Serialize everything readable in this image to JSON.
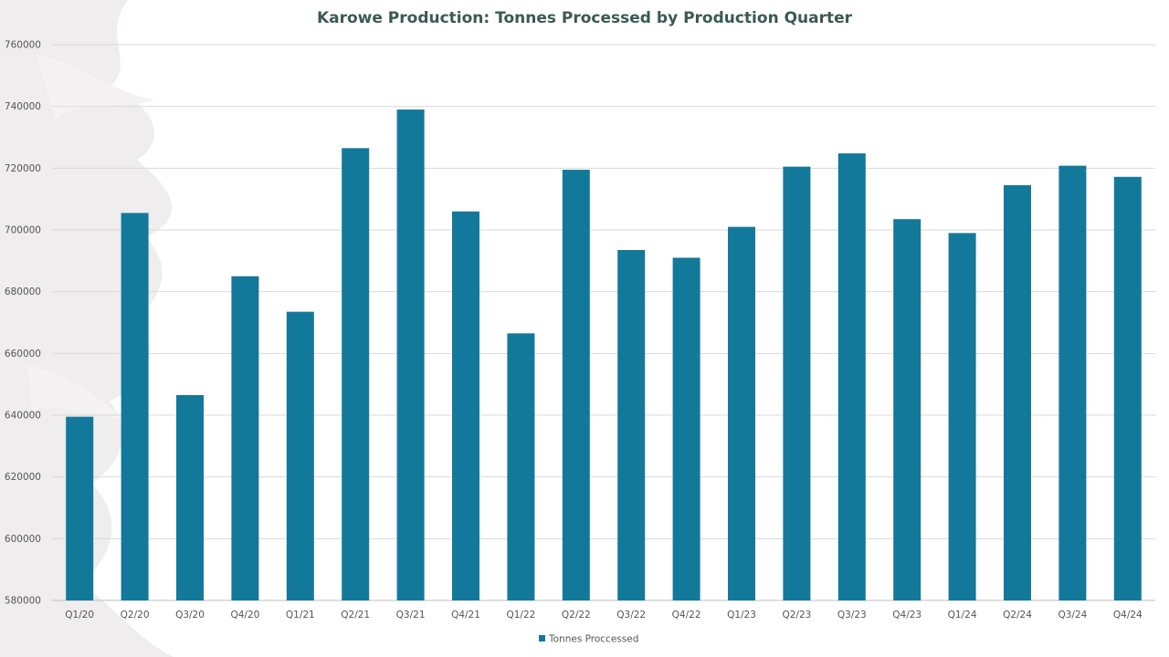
{
  "chart_data": {
    "type": "bar",
    "title": "Karowe Production: Tonnes Processed by Production Quarter",
    "xlabel": "",
    "ylabel": "",
    "categories": [
      "Q1/20",
      "Q2/20",
      "Q3/20",
      "Q4/20",
      "Q1/21",
      "Q2/21",
      "Q3/21",
      "Q4/21",
      "Q1/22",
      "Q2/22",
      "Q3/22",
      "Q4/22",
      "Q1/23",
      "Q2/23",
      "Q3/23",
      "Q4/23",
      "Q1/24",
      "Q2/24",
      "Q3/24",
      "Q4/24"
    ],
    "series": [
      {
        "name": "Tonnes Proccessed",
        "color": "#13799b",
        "values": [
          639500,
          705500,
          646500,
          685000,
          673500,
          726500,
          739000,
          706000,
          666500,
          719500,
          693500,
          691000,
          701000,
          720500,
          724800,
          703500,
          699000,
          714500,
          720800,
          717200
        ]
      }
    ],
    "ylim": [
      580000,
      760000
    ],
    "yticks": [
      580000,
      600000,
      620000,
      640000,
      660000,
      680000,
      700000,
      720000,
      740000,
      760000
    ],
    "grid": true,
    "legend": "bottom-center"
  }
}
